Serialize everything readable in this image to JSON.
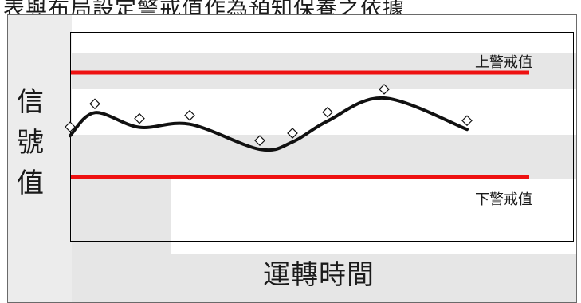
{
  "top_caption": "表與布局設定警戒值作為預知保養之依據",
  "diagram": {
    "y_axis_label": "信號值",
    "x_axis_label": "運轉時間",
    "upper_limit_label": "上警戒值",
    "lower_limit_label": "下警戒值",
    "colors": {
      "limit_line": "#ee1111",
      "signal_curve": "#111111",
      "marker_stroke": "#111111",
      "watermark": "#e6e6e6"
    },
    "marker_shape": "diamond",
    "signal_points": [
      {
        "t": 0,
        "v": 0.48
      },
      {
        "t": 1,
        "v": 0.7
      },
      {
        "t": 2,
        "v": 0.56
      },
      {
        "t": 3,
        "v": 0.59
      },
      {
        "t": 4,
        "v": 0.35
      },
      {
        "t": 5,
        "v": 0.42
      },
      {
        "t": 6,
        "v": 0.62
      },
      {
        "t": 7,
        "v": 0.84
      },
      {
        "t": 8,
        "v": 0.54
      }
    ]
  }
}
